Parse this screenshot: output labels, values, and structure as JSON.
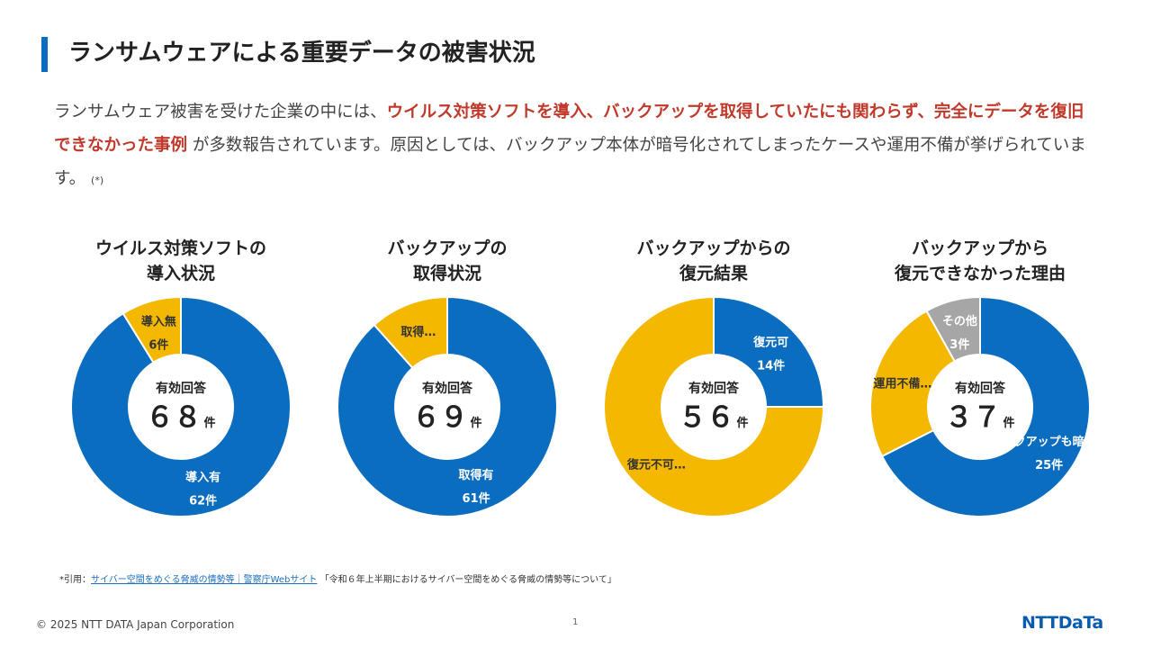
{
  "slide": {
    "title": "ランサムウェアによる重要データの被害状況",
    "intro": {
      "part1": "ランサムウェア被害を受けた企業の中には、",
      "highlight": "ウイルス対策ソフトを導入、バックアップを取得していたにも関わらず、完全にデータを復旧できなかった事例",
      "part2": " が多数報告されています。原因としては、バックアップ本体が暗号化されてしまったケースや運用不備が挙げられています。",
      "ref": "(*)"
    },
    "footnote": {
      "prefix": "*引用：",
      "link": "サイバー空間をめぐる脅威の情勢等｜警察庁Webサイト",
      "suffix": " 「令和６年上半期におけるサイバー空間をめぐる脅威の情勢等について」"
    },
    "copyright": "© 2025 NTT DATA Japan Corporation",
    "page_number": "1",
    "logo": "NTTDaTa"
  },
  "chart_data": [
    {
      "type": "pie",
      "title": "ウイルス対策ソフトの\n導入状況",
      "center_label": "有効回答",
      "center_value": "６８",
      "center_unit": "件",
      "slices": [
        {
          "name": "導入有",
          "value": 62,
          "value_label": "62件",
          "color": "#0b6dbf",
          "label_color": "#ffffff"
        },
        {
          "name": "導入無",
          "value": 6,
          "value_label": "6件",
          "color": "#f5b800",
          "label_color": "#333333"
        }
      ]
    },
    {
      "type": "pie",
      "title": "バックアップの\n取得状況",
      "center_label": "有効回答",
      "center_value": "６９",
      "center_unit": "件",
      "slices": [
        {
          "name": "取得有",
          "value": 61,
          "value_label": "61件",
          "color": "#0b6dbf",
          "label_color": "#ffffff"
        },
        {
          "name": "取得…",
          "value": 8,
          "value_label": "",
          "color": "#f5b800",
          "label_color": "#333333"
        }
      ]
    },
    {
      "type": "pie",
      "title": "バックアップからの\n復元結果",
      "center_label": "有効回答",
      "center_value": "５６",
      "center_unit": "件",
      "slices": [
        {
          "name": "復元可",
          "value": 14,
          "value_label": "14件",
          "color": "#0b6dbf",
          "label_color": "#ffffff"
        },
        {
          "name": "復元不可…",
          "value": 42,
          "value_label": "",
          "color": "#f5b800",
          "label_color": "#333333"
        }
      ]
    },
    {
      "type": "pie",
      "title": "バックアップから\n復元できなかった理由",
      "center_label": "有効回答",
      "center_value": "３７",
      "center_unit": "件",
      "slices": [
        {
          "name": "バックアップも暗号化",
          "value": 25,
          "value_label": "25件",
          "color": "#0b6dbf",
          "label_color": "#ffffff"
        },
        {
          "name": "運用不備…",
          "value": 9,
          "value_label": "",
          "color": "#f5b800",
          "label_color": "#333333"
        },
        {
          "name": "その他",
          "value": 3,
          "value_label": "3件",
          "color": "#a6a6a6",
          "label_color": "#ffffff"
        }
      ]
    }
  ]
}
